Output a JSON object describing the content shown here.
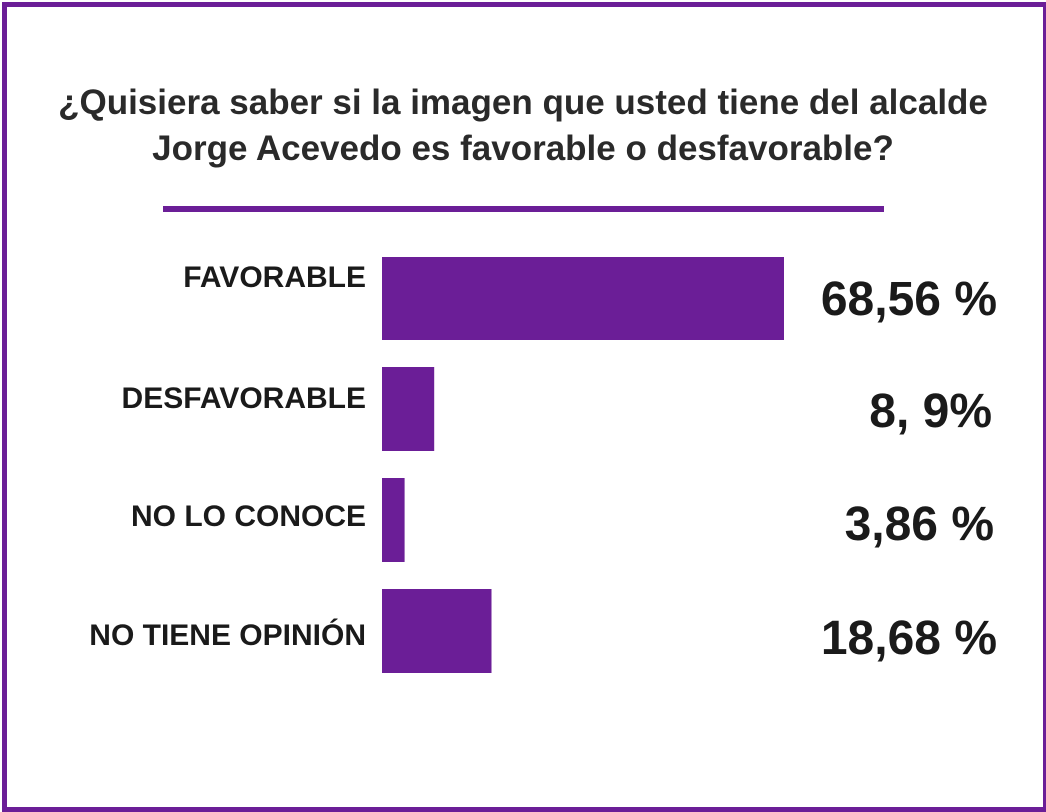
{
  "chart_data": {
    "type": "bar",
    "orientation": "horizontal",
    "title": "¿Quisiera saber si la imagen que usted tiene del alcalde Jorge Acevedo es favorable o desfavorable?",
    "categories": [
      "FAVORABLE",
      "DESFAVORABLE",
      "NO LO CONOCE",
      "NO TIENE OPINIÓN"
    ],
    "values": [
      68.56,
      8.9,
      3.86,
      18.68
    ],
    "value_labels": [
      "68,56 %",
      "8, 9%",
      "3,86 %",
      "18,68 %"
    ],
    "xlim": [
      0,
      100
    ],
    "grid": false,
    "legend": "none",
    "bar_color": "#6b1e97"
  }
}
